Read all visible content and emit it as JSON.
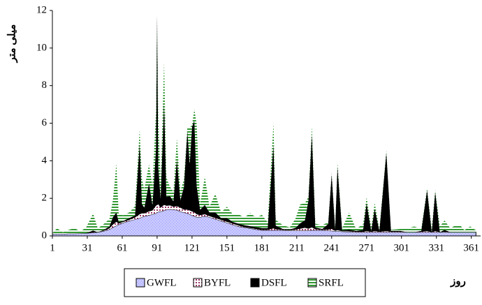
{
  "chart_data": {
    "type": "stacked-area",
    "y_label": "میلی متر",
    "x_label": "روز",
    "xlim": [
      1,
      369
    ],
    "xticks": [
      1,
      31,
      61,
      91,
      121,
      151,
      181,
      211,
      241,
      271,
      301,
      331,
      361
    ],
    "ylim": [
      0,
      12
    ],
    "yticks": [
      0,
      2,
      4,
      6,
      8,
      10,
      12
    ],
    "x": [
      1,
      5,
      10,
      15,
      20,
      25,
      30,
      36,
      40,
      45,
      50,
      53,
      56,
      58,
      62,
      67,
      72,
      76,
      78,
      80,
      84,
      87,
      90,
      91,
      92,
      94,
      97,
      99,
      102,
      105,
      108,
      111,
      114,
      117,
      119,
      121,
      123,
      125,
      128,
      132,
      136,
      141,
      146,
      151,
      156,
      161,
      166,
      171,
      176,
      181,
      186,
      191,
      193,
      199,
      205,
      210,
      214,
      218,
      221,
      224,
      227,
      233,
      238,
      241,
      244,
      246,
      250,
      256,
      262,
      268,
      271,
      275,
      278,
      282,
      288,
      292,
      300,
      306,
      312,
      318,
      323,
      327,
      330,
      334,
      338,
      343,
      347,
      351,
      355,
      360,
      365
    ],
    "series": [
      {
        "name": "GWFL",
        "color": "#9999ff",
        "values": [
          0.1,
          0.1,
          0.1,
          0.12,
          0.12,
          0.13,
          0.15,
          0.17,
          0.2,
          0.25,
          0.35,
          0.45,
          0.55,
          0.6,
          0.7,
          0.8,
          0.88,
          0.95,
          1.0,
          1.05,
          1.1,
          1.15,
          1.2,
          1.25,
          1.28,
          1.3,
          1.35,
          1.4,
          1.42,
          1.4,
          1.38,
          1.3,
          1.25,
          1.2,
          1.15,
          1.1,
          1.05,
          1.0,
          1.0,
          1.05,
          1.0,
          0.9,
          0.8,
          0.7,
          0.6,
          0.5,
          0.45,
          0.4,
          0.35,
          0.3,
          0.3,
          0.3,
          0.3,
          0.3,
          0.28,
          0.28,
          0.28,
          0.28,
          0.28,
          0.3,
          0.3,
          0.3,
          0.28,
          0.27,
          0.25,
          0.25,
          0.23,
          0.22,
          0.2,
          0.2,
          0.2,
          0.2,
          0.2,
          0.2,
          0.2,
          0.2,
          0.2,
          0.2,
          0.2,
          0.2,
          0.2,
          0.2,
          0.2,
          0.2,
          0.2,
          0.2,
          0.2,
          0.2,
          0.2,
          0.2,
          0.2
        ]
      },
      {
        "name": "BYFL",
        "color": "#993366",
        "values": [
          0,
          0,
          0,
          0,
          0,
          0,
          0,
          0.02,
          0,
          0.02,
          0.05,
          0.15,
          0.2,
          0.05,
          0.05,
          0.05,
          0.1,
          0.2,
          0.2,
          0.15,
          0.2,
          0.2,
          0.4,
          0.4,
          0.4,
          0.2,
          0.3,
          0.2,
          0.2,
          0.15,
          0.2,
          0.2,
          0.15,
          0.2,
          0.2,
          0.2,
          0.2,
          0.15,
          0.1,
          0.1,
          0.05,
          0.05,
          0.05,
          0.05,
          0.05,
          0.05,
          0.02,
          0.02,
          0.02,
          0.02,
          0.02,
          0.1,
          0.05,
          0.02,
          0.02,
          0.05,
          0.1,
          0.15,
          0.1,
          0.15,
          0.05,
          0.02,
          0.05,
          0.1,
          0.02,
          0.05,
          0.02,
          0.02,
          0.02,
          0.02,
          0.05,
          0.02,
          0.05,
          0.02,
          0.05,
          0.02,
          0.02,
          0,
          0,
          0.02,
          0.05,
          0,
          0.05,
          0,
          0.02,
          0,
          0,
          0,
          0,
          0,
          0
        ]
      },
      {
        "name": "DSFL",
        "color": "#000000",
        "values": [
          0,
          0,
          0,
          0,
          0,
          0,
          0,
          0.1,
          0,
          0.05,
          0.1,
          0.4,
          0.5,
          0.1,
          0.05,
          0.1,
          0.1,
          3.8,
          0.5,
          0.3,
          1.5,
          0.3,
          3.0,
          10.1,
          2.0,
          0.5,
          5.5,
          0.5,
          0.5,
          0.3,
          2.5,
          0.4,
          1.2,
          4.2,
          2.5,
          4.5,
          4.9,
          1.5,
          0.3,
          0.5,
          0.2,
          0.3,
          0.1,
          0.2,
          0.1,
          0.1,
          0.1,
          0.1,
          0.1,
          0.1,
          0.1,
          4.5,
          0.2,
          0.05,
          0.05,
          0.1,
          0.3,
          0.4,
          1.5,
          5.0,
          0.1,
          0.05,
          0.3,
          2.9,
          0.1,
          3.4,
          0.05,
          0.1,
          0.05,
          0.1,
          1.5,
          0.05,
          1.2,
          0.05,
          4.2,
          0.05,
          0.05,
          0,
          0,
          0.05,
          2.2,
          0,
          2.1,
          0,
          0.1,
          0,
          0,
          0,
          0,
          0,
          0
        ]
      },
      {
        "name": "SRFL",
        "color": "#339933",
        "values": [
          0.05,
          0.3,
          0.1,
          0.2,
          0.3,
          0.1,
          0.3,
          0.9,
          0.2,
          0.3,
          0.4,
          0.9,
          2.6,
          0.4,
          0.3,
          0.3,
          0.5,
          0.7,
          1.3,
          1.0,
          1.0,
          1.0,
          2.0,
          0,
          2.7,
          0.8,
          2.1,
          1.0,
          0.5,
          0.5,
          1.1,
          0.5,
          0.4,
          0.2,
          1.9,
          0.1,
          0.6,
          3.3,
          0.3,
          1.5,
          0.3,
          1.0,
          0.3,
          0.6,
          0.4,
          0.5,
          0.4,
          0.7,
          0.5,
          0.7,
          0.3,
          1.1,
          0.3,
          0.2,
          0.1,
          0.5,
          1.0,
          0.9,
          0.2,
          0.4,
          0.2,
          0.2,
          0.1,
          0.1,
          0.1,
          0.2,
          0.1,
          0.9,
          0.1,
          0.3,
          0.3,
          0.2,
          0.3,
          0.1,
          0.1,
          0.05,
          0.1,
          0.2,
          0.3,
          0.1,
          0.1,
          0.2,
          0.1,
          0.3,
          0.5,
          0.2,
          0.35,
          0.4,
          0.1,
          0.3,
          0.1
        ]
      }
    ]
  }
}
